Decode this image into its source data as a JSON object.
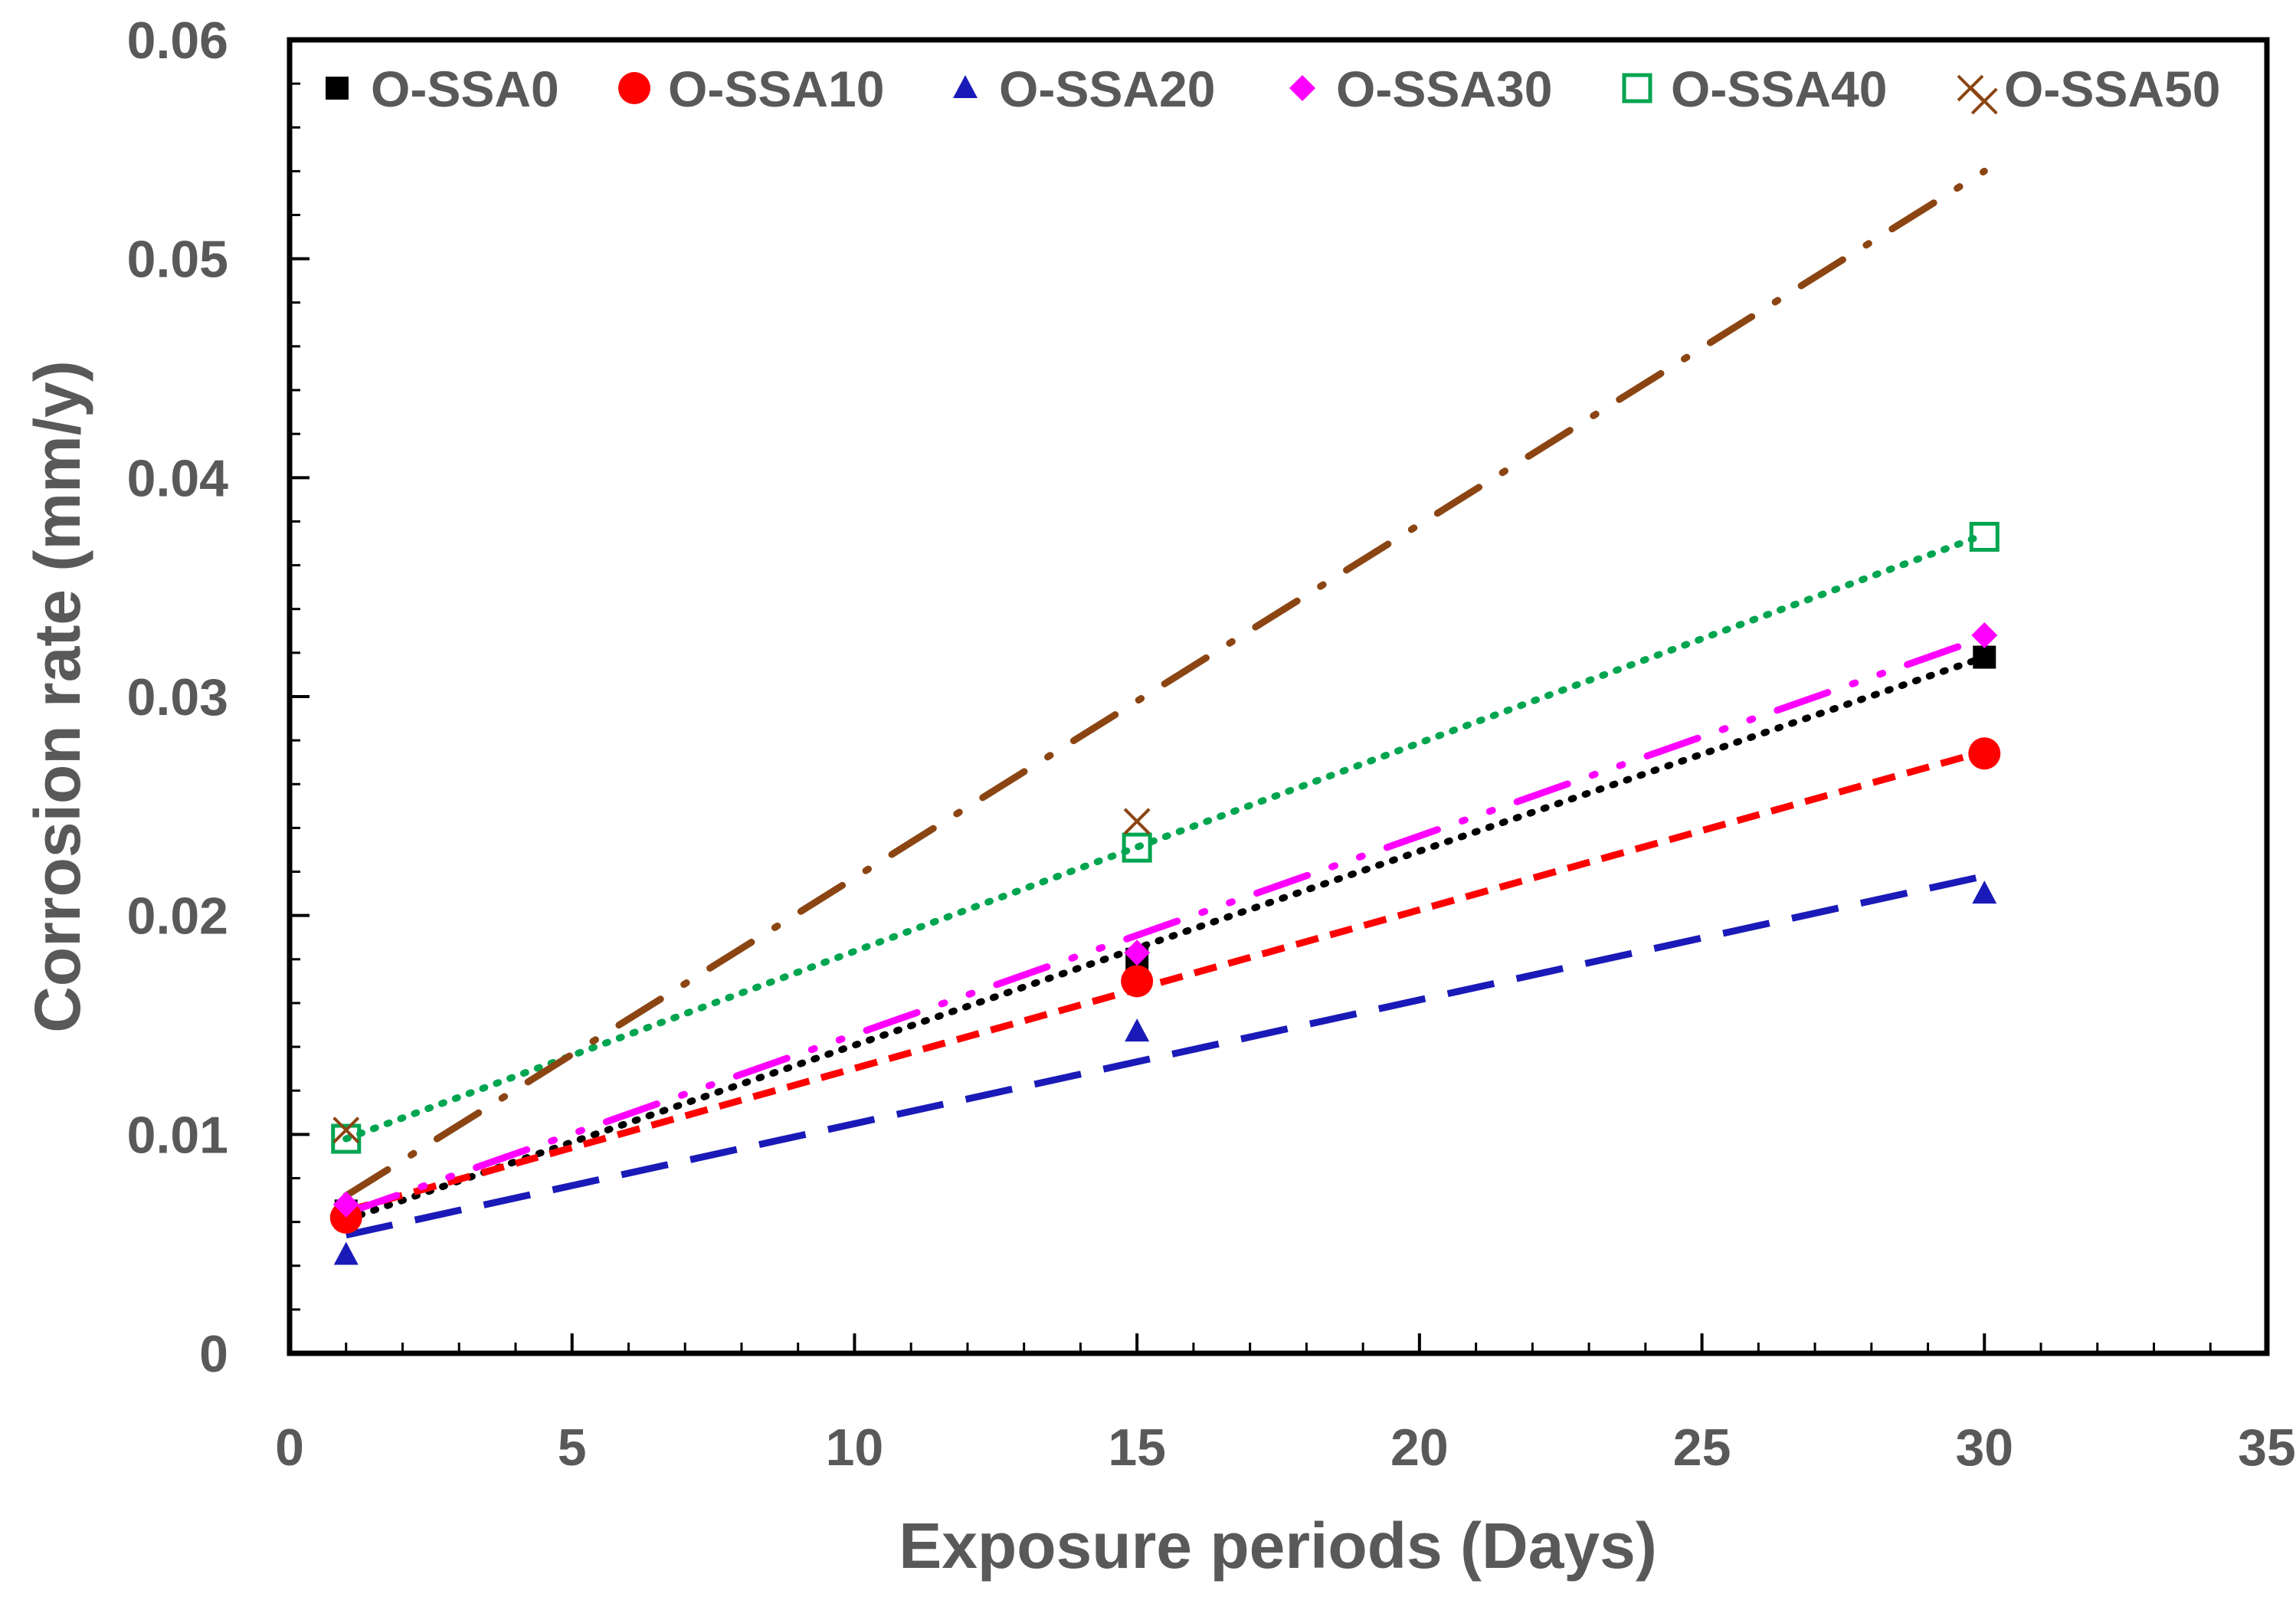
{
  "chart_data": {
    "type": "scatter",
    "title": "",
    "xlabel": "Exposure periods (Days)",
    "ylabel": "Corrosion rate (mm/y)",
    "xlim": [
      0,
      35
    ],
    "ylim": [
      0,
      0.06
    ],
    "xticks": [
      0,
      5,
      10,
      15,
      20,
      25,
      30,
      35
    ],
    "yticks": [
      0,
      0.01,
      0.02,
      0.03,
      0.04,
      0.05,
      0.06
    ],
    "xtick_labels": [
      "0",
      "5",
      "10",
      "15",
      "20",
      "25",
      "30",
      "35"
    ],
    "ytick_labels": [
      "0",
      "0.01",
      "0.02",
      "0.03",
      "0.04",
      "0.05",
      "0.06"
    ],
    "grid": false,
    "legend_position": "top",
    "x": [
      1,
      15,
      30
    ],
    "series": [
      {
        "name": "O-SSA0",
        "values": [
          0.0065,
          0.018,
          0.0318
        ],
        "color": "#000000",
        "marker": "square",
        "line_style": "dotted",
        "trend": [
          0.0061,
          0.0318
        ]
      },
      {
        "name": "O-SSA10",
        "values": [
          0.0062,
          0.017,
          0.0274
        ],
        "color": "#ff0000",
        "marker": "circle",
        "line_style": "dashed",
        "trend": [
          0.0065,
          0.0275
        ]
      },
      {
        "name": "O-SSA20",
        "values": [
          0.0045,
          0.0147,
          0.021
        ],
        "color": "#1a1ab8",
        "marker": "triangle",
        "line_style": "long-dash",
        "trend": [
          0.0054,
          0.0218
        ]
      },
      {
        "name": "O-SSA30",
        "values": [
          0.0068,
          0.0183,
          0.0328
        ],
        "color": "#ff00ff",
        "marker": "diamond",
        "line_style": "dash-dot-dot",
        "trend": [
          0.0064,
          0.0327
        ]
      },
      {
        "name": "O-SSA40",
        "values": [
          0.0098,
          0.0231,
          0.0373
        ],
        "color": "#00a550",
        "marker": "open-square",
        "line_style": "dotted",
        "trend": [
          0.0098,
          0.0374
        ]
      },
      {
        "name": "O-SSA50",
        "values": [
          0.0102,
          0.0243,
          0.0572
        ],
        "color": "#8b4513",
        "marker": "x",
        "line_style": "dash-dot",
        "trend": [
          0.0072,
          0.054
        ]
      }
    ]
  }
}
